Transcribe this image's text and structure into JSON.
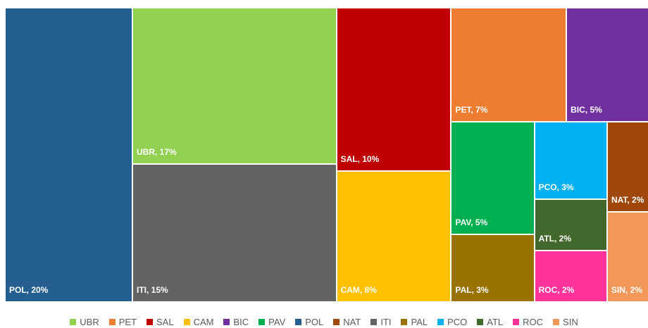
{
  "chart_data": {
    "type": "treemap",
    "categories": [
      "UBR",
      "PET",
      "SAL",
      "CAM",
      "BIC",
      "PAV",
      "POL",
      "NAT",
      "ITI",
      "PAL",
      "PCO",
      "ATL",
      "ROC",
      "SIN"
    ],
    "values": [
      17,
      7,
      10,
      8,
      5,
      5,
      20,
      2,
      15,
      3,
      3,
      2,
      2,
      2
    ],
    "value_labels": [
      "UBR, 17%",
      "PET, 7%",
      "SAL, 10%",
      "CAM, 8%",
      "BIC, 5%",
      "PAV, 5%",
      "POL, 20%",
      "NAT, 2%",
      "ITI, 15%",
      "PAL, 3%",
      "PCO, 3%",
      "ATL, 2%",
      "ROC, 2%",
      "SIN, 2%"
    ],
    "colors": [
      "#92d050",
      "#ed7d31",
      "#c00000",
      "#ffc000",
      "#7030a0",
      "#00b050",
      "#255e91",
      "#9e480e",
      "#636363",
      "#997300",
      "#00b0f0",
      "#43682b",
      "#ff3399",
      "#f1975a"
    ],
    "legend": "bottom"
  }
}
